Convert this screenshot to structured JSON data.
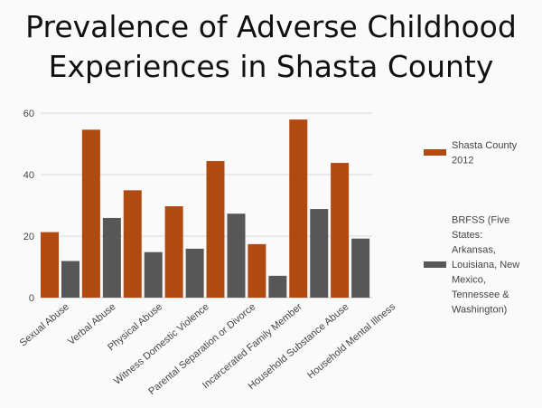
{
  "chart_data": {
    "type": "bar",
    "title_lines": [
      "Prevalence of Adverse Childhood",
      "Experiences in Shasta County"
    ],
    "categories": [
      "Sexual Abuse",
      "Verbal Abuse",
      "Physical Abuse",
      "Witness Domestic Violence",
      "Parental Separation or Divorce",
      "Incarcerated Family Member",
      "Household Substance Abuse",
      "Household Mental Illness"
    ],
    "series": [
      {
        "name_lines": [
          "Shasta County",
          "2012"
        ],
        "color": "#b04a10",
        "values": [
          21.3,
          54.6,
          34.9,
          29.7,
          44.4,
          17.4,
          57.9,
          43.8
        ]
      },
      {
        "name_lines": [
          "BRFSS (Five",
          "States:",
          "Arkansas,",
          "Louisiana, New",
          "Mexico,",
          "Tennessee &",
          "Washington)"
        ],
        "color": "#575757",
        "values": [
          11.9,
          25.9,
          14.8,
          15.9,
          27.3,
          7.1,
          28.8,
          19.2
        ]
      }
    ],
    "yticks": [
      0,
      20,
      40,
      60
    ],
    "ylim": [
      0,
      60
    ],
    "xlabel": "",
    "ylabel": "",
    "grid": true,
    "legend": "right"
  }
}
